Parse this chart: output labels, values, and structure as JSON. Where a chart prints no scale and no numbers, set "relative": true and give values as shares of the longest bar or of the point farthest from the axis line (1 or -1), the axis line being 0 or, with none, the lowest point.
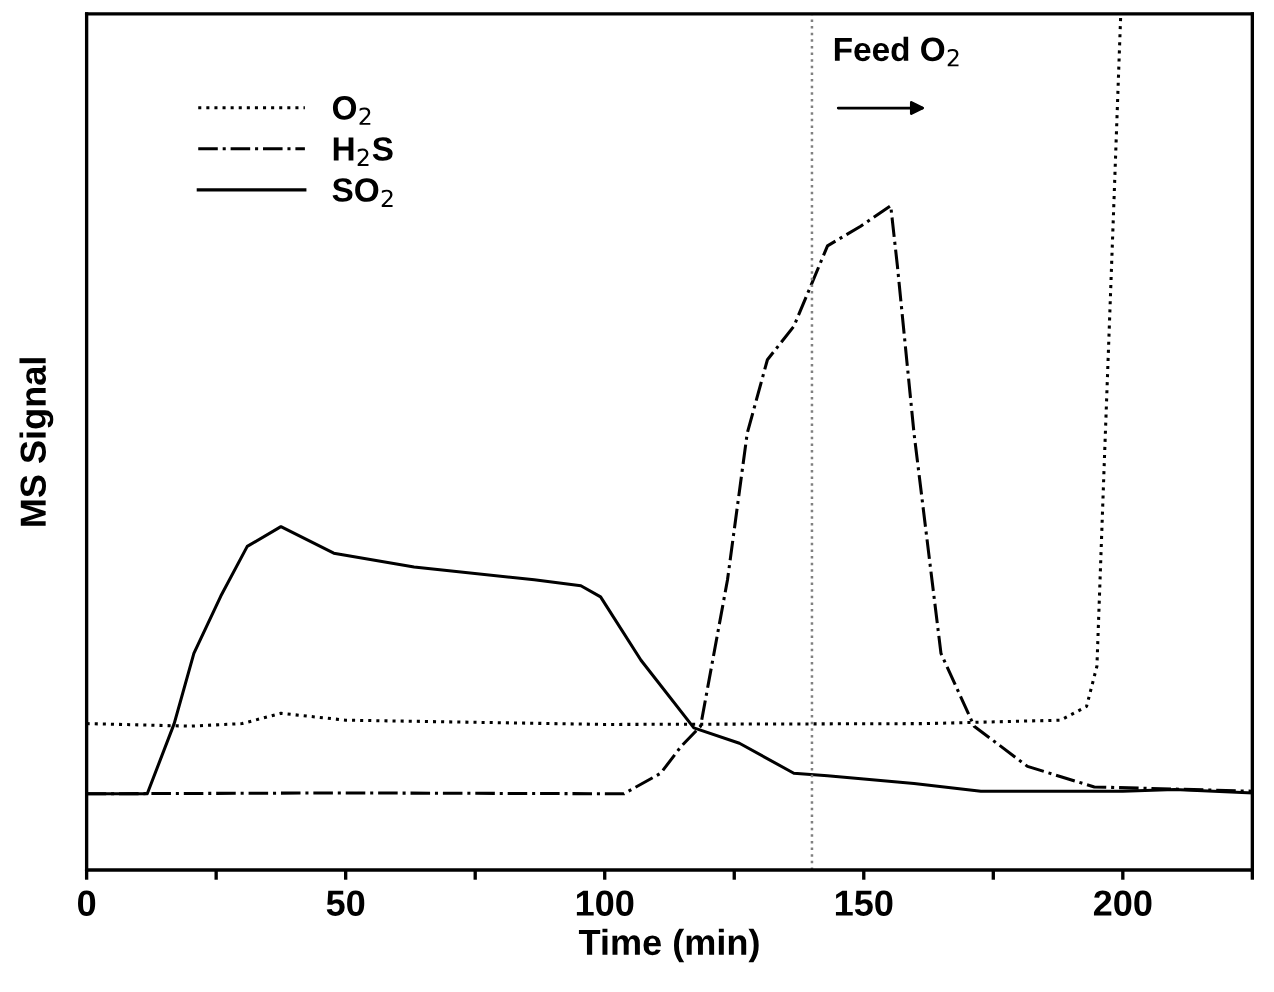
{
  "chart_data": {
    "type": "line",
    "xlabel": "Time (min)",
    "ylabel": "MS Signal",
    "relative": true,
    "tick_labels": "x",
    "legend": "top left",
    "grid": false,
    "xlim": [
      0,
      225
    ],
    "xticks": [
      0,
      {
        "value": 25,
        "label": null
      },
      50,
      {
        "value": 75,
        "label": null
      },
      100,
      {
        "value": 125,
        "label": null
      },
      150,
      {
        "value": 175,
        "label": null
      },
      200,
      {
        "value": 225,
        "label": null
      }
    ],
    "ref_lines": [
      {
        "axis": "x",
        "value": 140,
        "label": "Feed O$_{2}$",
        "color": "#808080",
        "line_style": "dotted"
      }
    ],
    "series": [
      {
        "name": "O$_{2}$",
        "color": "#000000",
        "line_style": "dotted",
        "x": [
          0,
          20,
          30,
          37.5,
          50,
          100,
          162,
          188,
          193,
          195,
          196.4,
          198.3,
          199.6
        ],
        "values": [
          0.171,
          0.168,
          0.171,
          0.183,
          0.175,
          0.17,
          0.171,
          0.175,
          0.191,
          0.238,
          0.472,
          0.783,
          1.0
        ]
      },
      {
        "name": "H$_{2}$S",
        "color": "#000000",
        "line_style": "dashdot",
        "x": [
          0,
          50,
          103.7,
          110.8,
          114.7,
          118.5,
          123.7,
          127.5,
          131.4,
          136.5,
          143,
          149.4,
          155.2,
          156.5,
          159.7,
          164.9,
          171.3,
          181.6,
          194.5,
          225
        ],
        "values": [
          0.089,
          0.09,
          0.089,
          0.113,
          0.144,
          0.168,
          0.339,
          0.51,
          0.596,
          0.635,
          0.729,
          0.752,
          0.776,
          0.705,
          0.51,
          0.253,
          0.168,
          0.121,
          0.097,
          0.092
        ]
      },
      {
        "name": "SO$_{2}$",
        "color": "#000000",
        "line_style": "solid",
        "x": [
          0,
          11.7,
          16.9,
          20.7,
          25.9,
          31,
          37.5,
          47.7,
          63.2,
          86.4,
          95.4,
          99.2,
          107,
          117.2,
          126,
          136.5,
          143,
          159.7,
          172.6,
          200,
          210,
          225
        ],
        "values": [
          0.089,
          0.089,
          0.171,
          0.253,
          0.32,
          0.378,
          0.401,
          0.37,
          0.354,
          0.339,
          0.332,
          0.319,
          0.245,
          0.166,
          0.148,
          0.113,
          0.11,
          0.101,
          0.092,
          0.092,
          0.094,
          0.09
        ]
      }
    ]
  }
}
